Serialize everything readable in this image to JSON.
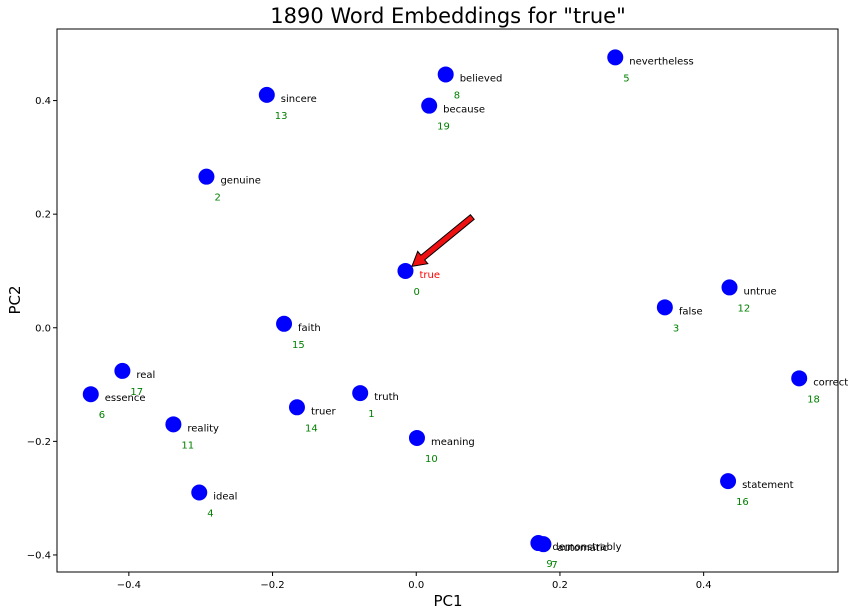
{
  "chart_data": {
    "type": "scatter",
    "title": "1890 Word Embeddings for \"true\"",
    "xlabel": "PC1",
    "ylabel": "PC2",
    "xlim": [
      -0.5,
      0.587
    ],
    "ylim": [
      -0.43,
      0.526
    ],
    "xticks": [
      -0.4,
      -0.2,
      0.0,
      0.2,
      0.4
    ],
    "xtick_labels": [
      "−0.4",
      "−0.2",
      "0.0",
      "0.2",
      "0.4"
    ],
    "yticks": [
      -0.4,
      -0.2,
      0.0,
      0.2,
      0.4
    ],
    "ytick_labels": [
      "−0.4",
      "−0.2",
      "0.0",
      "0.2",
      "0.4"
    ],
    "grid": false,
    "point_color": "#0000ff",
    "target_color": "#ff0000",
    "rank_color": "#008000",
    "arrow_color": "#ee1111",
    "points": [
      {
        "word": "true",
        "rank": "0",
        "x": -0.015,
        "y": 0.1,
        "target": true
      },
      {
        "word": "truth",
        "rank": "1",
        "x": -0.078,
        "y": -0.115
      },
      {
        "word": "genuine",
        "rank": "2",
        "x": -0.292,
        "y": 0.266
      },
      {
        "word": "false",
        "rank": "3",
        "x": 0.346,
        "y": 0.036
      },
      {
        "word": "ideal",
        "rank": "4",
        "x": -0.302,
        "y": -0.29
      },
      {
        "word": "nevertheless",
        "rank": "5",
        "x": 0.277,
        "y": 0.476
      },
      {
        "word": "essence",
        "rank": "6",
        "x": -0.453,
        "y": -0.117
      },
      {
        "word": "automatic",
        "rank": "7",
        "x": 0.177,
        "y": -0.381
      },
      {
        "word": "believed",
        "rank": "8",
        "x": 0.041,
        "y": 0.446
      },
      {
        "word": "demonstrably",
        "rank": "9",
        "x": 0.17,
        "y": -0.379
      },
      {
        "word": "meaning",
        "rank": "10",
        "x": 0.001,
        "y": -0.194
      },
      {
        "word": "reality",
        "rank": "11",
        "x": -0.338,
        "y": -0.17
      },
      {
        "word": "untrue",
        "rank": "12",
        "x": 0.436,
        "y": 0.071
      },
      {
        "word": "sincere",
        "rank": "13",
        "x": -0.208,
        "y": 0.41
      },
      {
        "word": "truer",
        "rank": "14",
        "x": -0.166,
        "y": -0.14
      },
      {
        "word": "faith",
        "rank": "15",
        "x": -0.184,
        "y": 0.007
      },
      {
        "word": "statement",
        "rank": "16",
        "x": 0.434,
        "y": -0.27
      },
      {
        "word": "real",
        "rank": "17",
        "x": -0.409,
        "y": -0.076
      },
      {
        "word": "correct",
        "rank": "18",
        "x": 0.533,
        "y": -0.089
      },
      {
        "word": "because",
        "rank": "19",
        "x": 0.018,
        "y": 0.391
      }
    ],
    "arrow": {
      "from": [
        0.078,
        0.195
      ],
      "to": [
        -0.006,
        0.108
      ]
    }
  }
}
